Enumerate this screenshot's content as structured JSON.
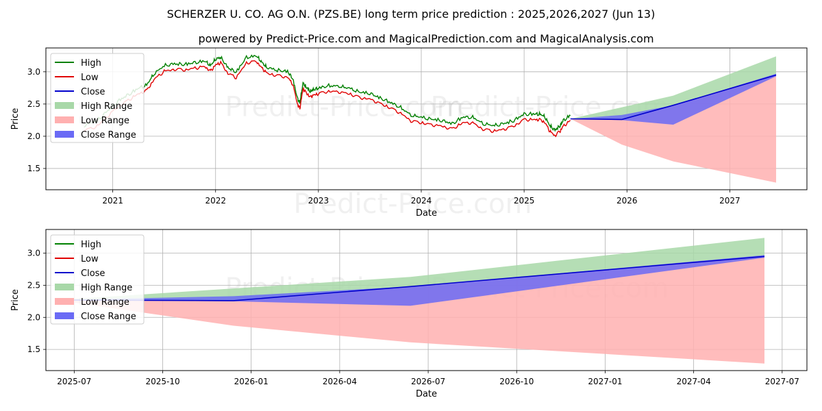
{
  "title": "SCHERZER U. CO. AG O.N. (PZS.BE) long term price prediction : 2025,2026,2027 (Jun 13)",
  "subtitle": "powered by Predict-Price.com and MagicalPrediction.com and MagicalAnalysis.com",
  "watermark": "Predict-Price.com",
  "colors": {
    "high": "#008000",
    "low": "#e00000",
    "close": "#0000cc",
    "high_range": "#a8d8a8",
    "low_range": "#ffb0b0",
    "close_range": "#6a6af5",
    "grid": "#b0b0b0"
  },
  "chart_data": [
    {
      "type": "line",
      "name": "long-term",
      "xlabel": "Date",
      "ylabel": "Price",
      "xlim": [
        2020.35,
        2027.75
      ],
      "ylim": [
        1.17,
        3.37
      ],
      "xticks": [
        2021,
        2022,
        2023,
        2024,
        2025,
        2026,
        2027
      ],
      "xtick_labels": [
        "2021",
        "2022",
        "2023",
        "2024",
        "2025",
        "2026",
        "2027"
      ],
      "yticks": [
        1.5,
        2.0,
        2.5,
        3.0
      ],
      "ytick_labels": [
        "1.5",
        "2.0",
        "2.5",
        "3.0"
      ],
      "legend": [
        "High",
        "Low",
        "Close",
        "High Range",
        "Low Range",
        "Close Range"
      ],
      "legend_position": "top-left",
      "history": {
        "x": [
          2020.72,
          2020.85,
          2020.95,
          2021.05,
          2021.15,
          2021.25,
          2021.33,
          2021.4,
          2021.5,
          2021.6,
          2021.7,
          2021.8,
          2021.9,
          2021.95,
          2022.0,
          2022.05,
          2022.12,
          2022.2,
          2022.3,
          2022.4,
          2022.45,
          2022.5,
          2022.6,
          2022.7,
          2022.75,
          2022.8,
          2022.82,
          2022.85,
          2022.88,
          2022.92,
          2022.95,
          2023.0,
          2023.1,
          2023.2,
          2023.3,
          2023.4,
          2023.5,
          2023.6,
          2023.7,
          2023.8,
          2023.9,
          2024.0,
          2024.1,
          2024.2,
          2024.3,
          2024.4,
          2024.5,
          2024.6,
          2024.7,
          2024.8,
          2024.9,
          2025.0,
          2025.1,
          2025.15,
          2025.2,
          2025.25,
          2025.3,
          2025.35,
          2025.38,
          2025.45
        ],
        "close": [
          2.12,
          2.2,
          2.35,
          2.5,
          2.6,
          2.7,
          2.75,
          2.92,
          3.05,
          3.08,
          3.07,
          3.1,
          3.12,
          3.05,
          3.15,
          3.18,
          3.02,
          2.95,
          3.18,
          3.2,
          3.1,
          3.02,
          2.98,
          2.96,
          2.85,
          2.52,
          2.48,
          2.78,
          2.72,
          2.65,
          2.68,
          2.7,
          2.74,
          2.73,
          2.7,
          2.64,
          2.62,
          2.55,
          2.48,
          2.4,
          2.28,
          2.25,
          2.22,
          2.2,
          2.15,
          2.25,
          2.25,
          2.15,
          2.12,
          2.15,
          2.2,
          2.3,
          2.3,
          2.3,
          2.26,
          2.12,
          2.05,
          2.12,
          2.2,
          2.28
        ]
      },
      "forecast": {
        "x": [
          2025.45,
          2025.95,
          2026.45,
          2027.45
        ],
        "close": [
          2.27,
          2.26,
          2.48,
          2.95
        ],
        "high_range_upper": [
          2.27,
          2.45,
          2.63,
          3.24
        ],
        "low_range_lower": [
          2.27,
          1.87,
          1.61,
          1.28
        ],
        "close_range_upper": [
          2.27,
          2.33,
          2.48,
          2.97
        ],
        "close_range_lower": [
          2.27,
          2.25,
          2.18,
          2.93
        ]
      }
    },
    {
      "type": "line",
      "name": "forecast-zoom",
      "xlabel": "Date",
      "ylabel": "Price",
      "xlim": [
        2025.42,
        2027.57
      ],
      "ylim": [
        1.17,
        3.37
      ],
      "xticks": [
        2025.5,
        2025.75,
        2026.0,
        2026.25,
        2026.5,
        2026.75,
        2027.0,
        2027.25,
        2027.5
      ],
      "xtick_labels": [
        "2025-07",
        "2025-10",
        "2026-01",
        "2026-04",
        "2026-07",
        "2026-10",
        "2027-01",
        "2027-04",
        "2027-07"
      ],
      "yticks": [
        1.5,
        2.0,
        2.5,
        3.0
      ],
      "ytick_labels": [
        "1.5",
        "2.0",
        "2.5",
        "3.0"
      ],
      "legend": [
        "High",
        "Low",
        "Close",
        "High Range",
        "Low Range",
        "Close Range"
      ],
      "legend_position": "top-left",
      "forecast": {
        "x": [
          2025.45,
          2025.95,
          2026.45,
          2027.45
        ],
        "close": [
          2.27,
          2.26,
          2.48,
          2.95
        ],
        "high_range_upper": [
          2.27,
          2.45,
          2.63,
          3.24
        ],
        "low_range_lower": [
          2.27,
          1.87,
          1.61,
          1.28
        ],
        "close_range_upper": [
          2.27,
          2.33,
          2.48,
          2.97
        ],
        "close_range_lower": [
          2.27,
          2.25,
          2.18,
          2.93
        ]
      }
    }
  ]
}
